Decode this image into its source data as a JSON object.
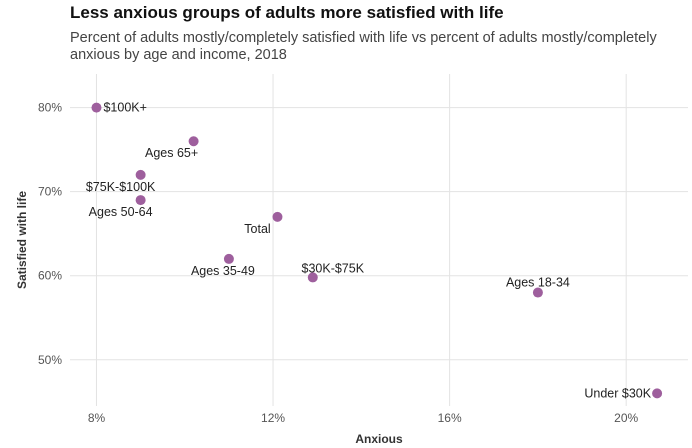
{
  "chart_data": {
    "type": "scatter",
    "title": "Less anxious groups of adults more satisfied with life",
    "subtitle": "Percent of adults mostly/completely satisfied with life vs percent of adults mostly/completely anxious by age and income, 2018",
    "xlabel": "Anxious",
    "ylabel": "Satisfied with life",
    "xlim": [
      7.4,
      21.4
    ],
    "ylim": [
      44.5,
      84.0
    ],
    "x_ticks": [
      8,
      12,
      16,
      20
    ],
    "x_tick_labels": [
      "8%",
      "12%",
      "16%",
      "20%"
    ],
    "y_ticks": [
      50,
      60,
      70,
      80
    ],
    "y_tick_labels": [
      "50%",
      "60%",
      "70%",
      "80%"
    ],
    "grid": true,
    "color": "#9e5f9d",
    "points": [
      {
        "label": "$100K+",
        "x": 8.0,
        "y": 80.0
      },
      {
        "label": "Ages 65+",
        "x": 10.2,
        "y": 76.0
      },
      {
        "label": "$75K-$100K",
        "x": 9.0,
        "y": 72.0
      },
      {
        "label": "Ages 50-64",
        "x": 9.0,
        "y": 69.0
      },
      {
        "label": "Total",
        "x": 12.1,
        "y": 67.0
      },
      {
        "label": "Ages 35-49",
        "x": 11.0,
        "y": 62.0
      },
      {
        "label": "$30K-$75K",
        "x": 12.9,
        "y": 59.8
      },
      {
        "label": "Ages 18-34",
        "x": 18.0,
        "y": 58.0
      },
      {
        "label": "Under $30K",
        "x": 20.7,
        "y": 46.0
      }
    ]
  }
}
